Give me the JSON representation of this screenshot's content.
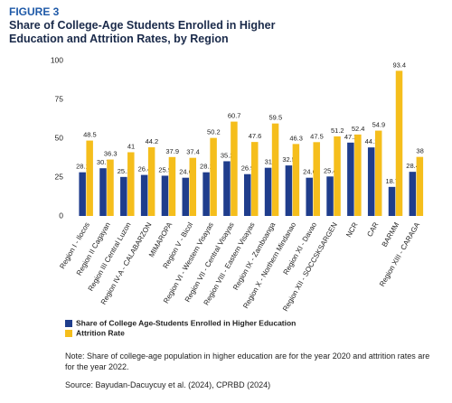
{
  "chart_data": {
    "type": "bar",
    "figure_label": "FIGURE 3",
    "title": "Share of College-Age Students Enrolled in Higher Education and Attrition Rates, by Region",
    "categories": [
      "Region I - Ilocos",
      "Region II Cagayan",
      "Region III Central Luzon",
      "Region IV-A - CALABARZON",
      "MIMAROPA",
      "Region V - Bicol",
      "Region VI - Western Visayas",
      "Region VII - Central Visayas",
      "Region VIII - Eastern Visayas",
      "Region IX - Zamboanga",
      "Region X - Northern Mindanao",
      "Region XI - Davao",
      "Region XII - SOCCSKSARGEN",
      "NCR",
      "CAR",
      "BARMM",
      "Region XIII - CARAGA"
    ],
    "series": [
      {
        "name": "Share of College Age-Students Enrolled in Higher Education",
        "color": "#1f3d8c",
        "values": [
          28.1,
          30.7,
          25.1,
          26.4,
          25.9,
          24.6,
          28.1,
          35.2,
          26.9,
          31,
          32.5,
          24.6,
          25.4,
          47.2,
          44.1,
          18.7,
          28.4
        ]
      },
      {
        "name": "Attrition Rate",
        "color": "#f5be1c",
        "values": [
          48.5,
          36.3,
          41,
          44.2,
          37.9,
          37.4,
          50.2,
          60.7,
          47.6,
          59.5,
          46.3,
          47.5,
          51.2,
          52.4,
          54.9,
          93.4,
          38
        ]
      }
    ],
    "ylim": [
      0,
      100
    ],
    "yticks": [
      0,
      25,
      50,
      75,
      100
    ],
    "grid": false,
    "legend": "bottom-left",
    "note": "Note: Share of college-age population in higher education are for the year 2020 and attrition rates are for the year 2022.",
    "source": "Source: Bayudan-Dacuycuy et al. (2024), CPRBD (2024)"
  }
}
